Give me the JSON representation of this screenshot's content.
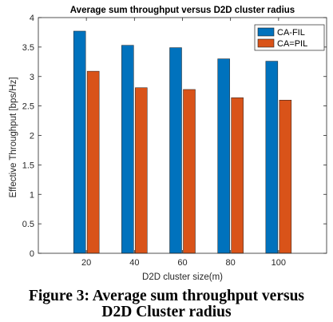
{
  "chart_data": {
    "type": "bar",
    "title": "Average sum throughput versus D2D cluster radius",
    "xlabel": "D2D cluster size(m)",
    "ylabel": "Effective Throughput [bps/Hz]",
    "x": [
      20,
      40,
      60,
      80,
      100
    ],
    "xlim": [
      0,
      120
    ],
    "ylim": [
      0,
      4
    ],
    "yticks": [
      0,
      0.5,
      1,
      1.5,
      2,
      2.5,
      3,
      3.5,
      4
    ],
    "series": [
      {
        "name": "CA-FIL",
        "color": "#0072BD",
        "values": [
          3.77,
          3.53,
          3.49,
          3.3,
          3.26
        ]
      },
      {
        "name": "CA=PIL",
        "color": "#D95319",
        "values": [
          3.09,
          2.81,
          2.78,
          2.64,
          2.6
        ]
      }
    ],
    "legend": "top-right",
    "grid": false
  },
  "caption": [
    "Figure 3: Average sum throughput versus",
    "D2D Cluster radius"
  ]
}
